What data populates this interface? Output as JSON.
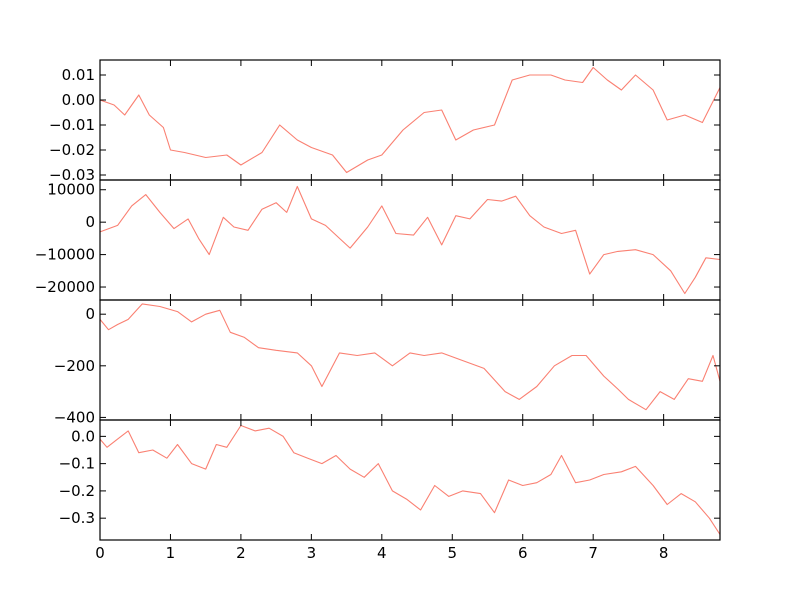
{
  "chart_data": {
    "type": "line",
    "layout": "4 stacked panels sharing x-axis",
    "line_color": "#fa8072",
    "xlim": [
      0,
      8.8
    ],
    "x_ticks": [
      0,
      1,
      2,
      3,
      4,
      5,
      6,
      7,
      8
    ],
    "x_tick_labels": [
      "0",
      "1",
      "2",
      "3",
      "4",
      "5",
      "6",
      "7",
      "8"
    ],
    "panels": [
      {
        "ylim": [
          -0.032,
          0.016
        ],
        "y_ticks": [
          -0.03,
          -0.02,
          -0.01,
          0.0,
          0.01
        ],
        "y_tick_labels": [
          "−0.03",
          "−0.02",
          "−0.01",
          "0.00",
          "0.01"
        ],
        "x": [
          0,
          0.2,
          0.35,
          0.55,
          0.7,
          0.9,
          1.0,
          1.2,
          1.5,
          1.8,
          2.0,
          2.3,
          2.55,
          2.8,
          3.0,
          3.3,
          3.5,
          3.8,
          4.0,
          4.3,
          4.6,
          4.85,
          5.05,
          5.3,
          5.6,
          5.85,
          6.1,
          6.4,
          6.6,
          6.85,
          7.0,
          7.2,
          7.4,
          7.6,
          7.85,
          8.05,
          8.3,
          8.55,
          8.8
        ],
        "values": [
          0.0,
          -0.002,
          -0.006,
          0.002,
          -0.006,
          -0.011,
          -0.02,
          -0.021,
          -0.023,
          -0.022,
          -0.026,
          -0.021,
          -0.01,
          -0.016,
          -0.019,
          -0.022,
          -0.029,
          -0.024,
          -0.022,
          -0.012,
          -0.005,
          -0.004,
          -0.016,
          -0.012,
          -0.01,
          0.008,
          0.01,
          0.01,
          0.008,
          0.007,
          0.013,
          0.008,
          0.004,
          0.01,
          0.004,
          -0.008,
          -0.006,
          -0.009,
          0.005
        ]
      },
      {
        "ylim": [
          -24000,
          13000
        ],
        "y_ticks": [
          -20000,
          -10000,
          0,
          10000
        ],
        "y_tick_labels": [
          "−20000",
          "−10000",
          "0",
          "10000"
        ],
        "x": [
          0,
          0.25,
          0.45,
          0.65,
          0.85,
          1.05,
          1.25,
          1.4,
          1.55,
          1.75,
          1.9,
          2.1,
          2.3,
          2.5,
          2.65,
          2.8,
          3.0,
          3.2,
          3.4,
          3.55,
          3.8,
          4.0,
          4.2,
          4.45,
          4.65,
          4.85,
          5.05,
          5.25,
          5.5,
          5.7,
          5.9,
          6.1,
          6.3,
          6.55,
          6.75,
          6.95,
          7.15,
          7.35,
          7.6,
          7.85,
          8.1,
          8.3,
          8.45,
          8.6,
          8.8
        ],
        "values": [
          -3000,
          -1000,
          5000,
          8500,
          3000,
          -2000,
          1000,
          -5000,
          -10000,
          1500,
          -1500,
          -2500,
          4000,
          6000,
          3000,
          11000,
          1000,
          -1000,
          -5000,
          -8000,
          -1500,
          5000,
          -3500,
          -4000,
          1500,
          -7000,
          2000,
          1000,
          7000,
          6500,
          8000,
          2000,
          -1500,
          -3500,
          -2500,
          -16000,
          -10000,
          -9000,
          -8500,
          -10000,
          -15000,
          -22000,
          -17000,
          -11000,
          -11500
        ]
      },
      {
        "ylim": [
          -410,
          55
        ],
        "y_ticks": [
          -400,
          -200,
          0
        ],
        "y_tick_labels": [
          "−400",
          "−200",
          "0"
        ],
        "x": [
          0,
          0.12,
          0.25,
          0.4,
          0.6,
          0.85,
          1.1,
          1.3,
          1.5,
          1.7,
          1.85,
          2.05,
          2.25,
          2.5,
          2.8,
          3.0,
          3.15,
          3.4,
          3.65,
          3.9,
          4.15,
          4.4,
          4.6,
          4.85,
          5.15,
          5.45,
          5.75,
          5.95,
          6.2,
          6.45,
          6.7,
          6.9,
          7.15,
          7.35,
          7.5,
          7.75,
          7.95,
          8.15,
          8.35,
          8.55,
          8.7,
          8.8
        ],
        "values": [
          -20,
          -60,
          -40,
          -20,
          40,
          30,
          10,
          -30,
          0,
          15,
          -70,
          -90,
          -130,
          -140,
          -150,
          -200,
          -280,
          -150,
          -160,
          -150,
          -200,
          -150,
          -160,
          -150,
          -180,
          -210,
          -300,
          -330,
          -280,
          -200,
          -160,
          -160,
          -240,
          -290,
          -330,
          -370,
          -300,
          -330,
          -250,
          -260,
          -160,
          -260
        ]
      },
      {
        "ylim": [
          -0.38,
          0.06
        ],
        "y_ticks": [
          -0.3,
          -0.2,
          -0.1,
          0.0
        ],
        "y_tick_labels": [
          "−0.3",
          "−0.2",
          "−0.1",
          "0.0"
        ],
        "x": [
          0,
          0.1,
          0.25,
          0.4,
          0.55,
          0.75,
          0.95,
          1.1,
          1.3,
          1.5,
          1.65,
          1.8,
          2.0,
          2.2,
          2.4,
          2.6,
          2.75,
          2.95,
          3.15,
          3.35,
          3.55,
          3.75,
          3.95,
          4.15,
          4.35,
          4.55,
          4.75,
          4.95,
          5.15,
          5.4,
          5.6,
          5.8,
          6.0,
          6.2,
          6.4,
          6.55,
          6.75,
          6.95,
          7.15,
          7.4,
          7.6,
          7.85,
          8.05,
          8.25,
          8.45,
          8.65,
          8.8
        ],
        "values": [
          -0.01,
          -0.04,
          -0.01,
          0.02,
          -0.06,
          -0.05,
          -0.08,
          -0.03,
          -0.1,
          -0.12,
          -0.03,
          -0.04,
          0.04,
          0.02,
          0.03,
          0.0,
          -0.06,
          -0.08,
          -0.1,
          -0.07,
          -0.12,
          -0.15,
          -0.1,
          -0.2,
          -0.23,
          -0.27,
          -0.18,
          -0.22,
          -0.2,
          -0.21,
          -0.28,
          -0.16,
          -0.18,
          -0.17,
          -0.14,
          -0.07,
          -0.17,
          -0.16,
          -0.14,
          -0.13,
          -0.11,
          -0.18,
          -0.25,
          -0.21,
          -0.24,
          -0.3,
          -0.36
        ]
      }
    ]
  }
}
